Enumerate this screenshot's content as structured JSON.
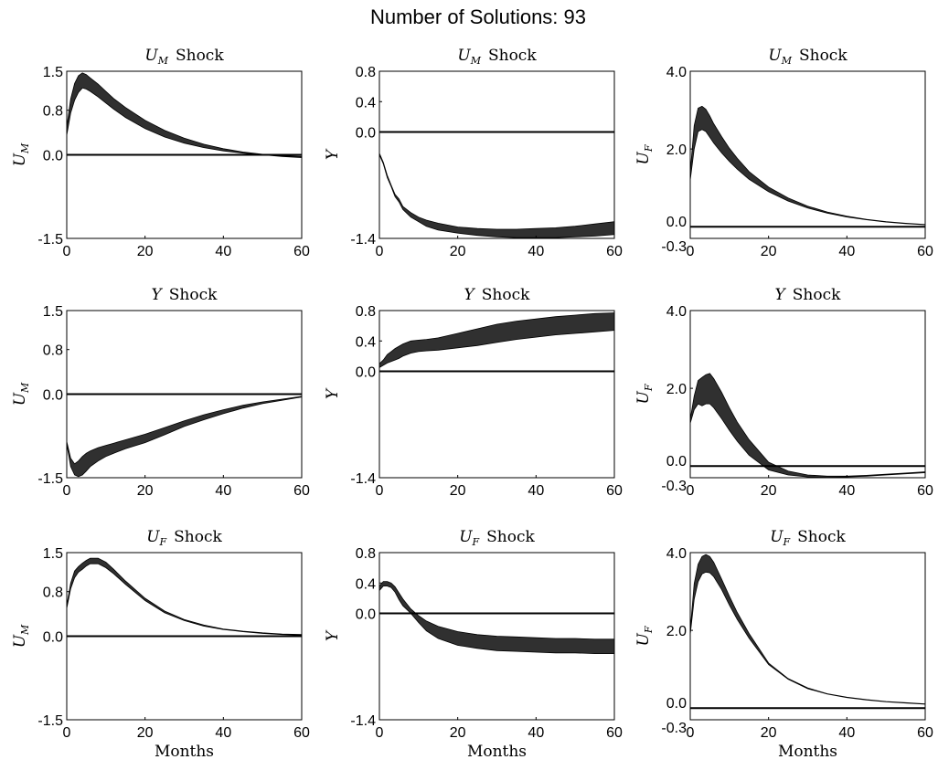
{
  "figure": {
    "title": "Number of Solutions: 93"
  },
  "chart_data": [
    {
      "type": "area",
      "title_var": "U",
      "title_sub": "M",
      "title_suffix": "Shock",
      "ylabel_var": "U",
      "ylabel_sub": "M",
      "xlabel": "",
      "xlim": [
        0,
        60
      ],
      "ylim": [
        -1.5,
        1.5
      ],
      "xticks": [
        0,
        20,
        40,
        60
      ],
      "yticks": [
        -1.5,
        0.0,
        0.8,
        1.5
      ],
      "xtick_labels": [
        "0",
        "20",
        "40",
        "60"
      ],
      "ytick_labels": [
        "-1.5",
        "0.0",
        "0.8",
        "1.5"
      ],
      "zero_line": 0,
      "x": [
        0,
        1,
        2,
        3,
        4,
        5,
        6,
        8,
        10,
        12,
        15,
        20,
        25,
        30,
        35,
        40,
        45,
        50,
        55,
        60
      ],
      "lower": [
        0.35,
        0.75,
        0.98,
        1.12,
        1.2,
        1.18,
        1.14,
        1.04,
        0.93,
        0.82,
        0.67,
        0.47,
        0.32,
        0.21,
        0.13,
        0.07,
        0.03,
        0.0,
        -0.03,
        -0.05
      ],
      "upper": [
        0.5,
        1.0,
        1.28,
        1.42,
        1.47,
        1.44,
        1.38,
        1.27,
        1.14,
        1.01,
        0.85,
        0.62,
        0.44,
        0.3,
        0.19,
        0.11,
        0.05,
        0.01,
        -0.02,
        -0.03
      ]
    },
    {
      "type": "area",
      "title_var": "U",
      "title_sub": "M",
      "title_suffix": "Shock",
      "ylabel_var": "Y",
      "ylabel_sub": "",
      "xlabel": "",
      "xlim": [
        0,
        60
      ],
      "ylim": [
        -1.4,
        0.8
      ],
      "xticks": [
        0,
        20,
        40,
        60
      ],
      "yticks": [
        -1.4,
        0.0,
        0.4,
        0.8
      ],
      "xtick_labels": [
        "0",
        "20",
        "40",
        "60"
      ],
      "ytick_labels": [
        "-1.4",
        "0.0",
        "0.4",
        "0.8"
      ],
      "zero_line": 0,
      "x": [
        0,
        1,
        2,
        3,
        4,
        5,
        6,
        8,
        10,
        12,
        15,
        20,
        25,
        30,
        35,
        40,
        45,
        50,
        55,
        60
      ],
      "lower": [
        -0.3,
        -0.42,
        -0.6,
        -0.72,
        -0.85,
        -0.92,
        -1.02,
        -1.12,
        -1.18,
        -1.24,
        -1.29,
        -1.33,
        -1.36,
        -1.38,
        -1.39,
        -1.39,
        -1.39,
        -1.38,
        -1.37,
        -1.35
      ],
      "upper": [
        -0.28,
        -0.4,
        -0.57,
        -0.7,
        -0.82,
        -0.88,
        -0.98,
        -1.06,
        -1.12,
        -1.16,
        -1.2,
        -1.25,
        -1.27,
        -1.28,
        -1.28,
        -1.27,
        -1.26,
        -1.24,
        -1.21,
        -1.18
      ]
    },
    {
      "type": "area",
      "title_var": "U",
      "title_sub": "M",
      "title_suffix": "Shock",
      "ylabel_var": "U",
      "ylabel_sub": "F",
      "xlabel": "",
      "xlim": [
        0,
        60
      ],
      "ylim": [
        -0.3,
        4.0
      ],
      "xticks": [
        0,
        20,
        40,
        60
      ],
      "yticks": [
        -0.3,
        0.0,
        2.0,
        4.0
      ],
      "xtick_labels": [
        "0",
        "20",
        "40",
        "60"
      ],
      "ytick_labels": [
        "-0.3",
        "0.0",
        "2.0",
        "4.0"
      ],
      "zero_line": 0,
      "x": [
        0,
        1,
        2,
        3,
        4,
        5,
        6,
        8,
        10,
        12,
        15,
        20,
        25,
        30,
        35,
        40,
        45,
        50,
        55,
        60
      ],
      "lower": [
        1.2,
        2.0,
        2.45,
        2.5,
        2.45,
        2.3,
        2.15,
        1.9,
        1.68,
        1.48,
        1.22,
        0.9,
        0.66,
        0.48,
        0.35,
        0.25,
        0.18,
        0.12,
        0.08,
        0.05
      ],
      "upper": [
        1.4,
        2.6,
        3.05,
        3.1,
        3.02,
        2.85,
        2.65,
        2.32,
        2.02,
        1.76,
        1.42,
        1.02,
        0.74,
        0.53,
        0.38,
        0.27,
        0.19,
        0.13,
        0.09,
        0.06
      ]
    },
    {
      "type": "area",
      "title_var": "Y",
      "title_sub": "",
      "title_suffix": "Shock",
      "ylabel_var": "U",
      "ylabel_sub": "M",
      "xlabel": "",
      "xlim": [
        0,
        60
      ],
      "ylim": [
        -1.5,
        1.5
      ],
      "xticks": [
        0,
        20,
        40,
        60
      ],
      "yticks": [
        -1.5,
        0.0,
        0.8,
        1.5
      ],
      "xtick_labels": [
        "0",
        "20",
        "40",
        "60"
      ],
      "ytick_labels": [
        "-1.5",
        "0.0",
        "0.8",
        "1.5"
      ],
      "zero_line": 0,
      "x": [
        0,
        1,
        2,
        3,
        4,
        5,
        6,
        8,
        10,
        12,
        15,
        20,
        25,
        30,
        35,
        40,
        45,
        50,
        55,
        60
      ],
      "lower": [
        -0.9,
        -1.3,
        -1.45,
        -1.48,
        -1.45,
        -1.38,
        -1.3,
        -1.2,
        -1.12,
        -1.06,
        -0.98,
        -0.87,
        -0.73,
        -0.58,
        -0.46,
        -0.35,
        -0.25,
        -0.17,
        -0.11,
        -0.05
      ],
      "upper": [
        -0.85,
        -1.15,
        -1.25,
        -1.2,
        -1.12,
        -1.06,
        -1.02,
        -0.96,
        -0.92,
        -0.88,
        -0.82,
        -0.72,
        -0.6,
        -0.48,
        -0.37,
        -0.28,
        -0.2,
        -0.14,
        -0.09,
        -0.04
      ]
    },
    {
      "type": "area",
      "title_var": "Y",
      "title_sub": "",
      "title_suffix": "Shock",
      "ylabel_var": "Y",
      "ylabel_sub": "",
      "xlabel": "",
      "xlim": [
        0,
        60
      ],
      "ylim": [
        -1.4,
        0.8
      ],
      "xticks": [
        0,
        20,
        40,
        60
      ],
      "yticks": [
        -1.4,
        0.0,
        0.4,
        0.8
      ],
      "xtick_labels": [
        "0",
        "20",
        "40",
        "60"
      ],
      "ytick_labels": [
        "-1.4",
        "0.0",
        "0.4",
        "0.8"
      ],
      "zero_line": 0,
      "x": [
        0,
        1,
        2,
        3,
        4,
        5,
        6,
        8,
        10,
        12,
        15,
        20,
        25,
        30,
        35,
        40,
        45,
        50,
        55,
        60
      ],
      "lower": [
        0.05,
        0.08,
        0.11,
        0.13,
        0.15,
        0.17,
        0.2,
        0.24,
        0.26,
        0.27,
        0.28,
        0.31,
        0.34,
        0.38,
        0.42,
        0.45,
        0.48,
        0.5,
        0.52,
        0.54
      ],
      "upper": [
        0.1,
        0.15,
        0.22,
        0.26,
        0.3,
        0.33,
        0.36,
        0.4,
        0.41,
        0.42,
        0.44,
        0.5,
        0.56,
        0.62,
        0.66,
        0.69,
        0.72,
        0.74,
        0.76,
        0.77
      ]
    },
    {
      "type": "area",
      "title_var": "Y",
      "title_sub": "",
      "title_suffix": "Shock",
      "ylabel_var": "U",
      "ylabel_sub": "F",
      "xlabel": "",
      "xlim": [
        0,
        60
      ],
      "ylim": [
        -0.3,
        4.0
      ],
      "xticks": [
        0,
        20,
        40,
        60
      ],
      "yticks": [
        -0.3,
        0.0,
        2.0,
        4.0
      ],
      "xtick_labels": [
        "0",
        "20",
        "40",
        "60"
      ],
      "ytick_labels": [
        "-0.3",
        "0.0",
        "2.0",
        "4.0"
      ],
      "zero_line": 0,
      "x": [
        0,
        1,
        2,
        3,
        4,
        5,
        6,
        8,
        10,
        12,
        15,
        20,
        25,
        30,
        35,
        40,
        45,
        50,
        55,
        60
      ],
      "lower": [
        1.1,
        1.45,
        1.6,
        1.55,
        1.6,
        1.6,
        1.5,
        1.22,
        0.92,
        0.64,
        0.28,
        -0.1,
        -0.23,
        -0.28,
        -0.29,
        -0.28,
        -0.26,
        -0.23,
        -0.2,
        -0.17
      ],
      "upper": [
        1.2,
        1.8,
        2.2,
        2.28,
        2.35,
        2.38,
        2.25,
        1.9,
        1.5,
        1.13,
        0.68,
        0.1,
        -0.13,
        -0.23,
        -0.26,
        -0.26,
        -0.24,
        -0.21,
        -0.18,
        -0.15
      ]
    },
    {
      "type": "area",
      "title_var": "U",
      "title_sub": "F",
      "title_suffix": "Shock",
      "ylabel_var": "U",
      "ylabel_sub": "M",
      "xlabel": "Months",
      "xlim": [
        0,
        60
      ],
      "ylim": [
        -1.5,
        1.5
      ],
      "xticks": [
        0,
        20,
        40,
        60
      ],
      "yticks": [
        -1.5,
        0.0,
        0.8,
        1.5
      ],
      "xtick_labels": [
        "0",
        "20",
        "40",
        "60"
      ],
      "ytick_labels": [
        "-1.5",
        "0.0",
        "0.8",
        "1.5"
      ],
      "zero_line": 0,
      "x": [
        0,
        1,
        2,
        3,
        4,
        5,
        6,
        8,
        10,
        12,
        15,
        20,
        25,
        30,
        35,
        40,
        45,
        50,
        55,
        60
      ],
      "lower": [
        0.5,
        0.85,
        1.05,
        1.15,
        1.2,
        1.26,
        1.3,
        1.3,
        1.23,
        1.12,
        0.93,
        0.64,
        0.42,
        0.28,
        0.18,
        0.12,
        0.08,
        0.05,
        0.03,
        0.02
      ],
      "upper": [
        0.55,
        0.95,
        1.17,
        1.25,
        1.31,
        1.36,
        1.4,
        1.4,
        1.33,
        1.2,
        0.99,
        0.68,
        0.45,
        0.3,
        0.2,
        0.13,
        0.09,
        0.06,
        0.04,
        0.03
      ]
    },
    {
      "type": "area",
      "title_var": "U",
      "title_sub": "F",
      "title_suffix": "Shock",
      "ylabel_var": "Y",
      "ylabel_sub": "",
      "xlabel": "Months",
      "xlim": [
        0,
        60
      ],
      "ylim": [
        -1.4,
        0.8
      ],
      "xticks": [
        0,
        20,
        40,
        60
      ],
      "yticks": [
        -1.4,
        0.0,
        0.4,
        0.8
      ],
      "xtick_labels": [
        "0",
        "20",
        "40",
        "60"
      ],
      "ytick_labels": [
        "-1.4",
        "0.0",
        "0.4",
        "0.8"
      ],
      "zero_line": 0,
      "x": [
        0,
        1,
        2,
        3,
        4,
        5,
        6,
        8,
        10,
        12,
        15,
        20,
        25,
        30,
        35,
        40,
        45,
        50,
        55,
        60
      ],
      "lower": [
        0.3,
        0.36,
        0.36,
        0.34,
        0.28,
        0.18,
        0.1,
        0.0,
        -0.12,
        -0.23,
        -0.33,
        -0.42,
        -0.46,
        -0.49,
        -0.5,
        -0.51,
        -0.52,
        -0.52,
        -0.53,
        -0.53
      ],
      "upper": [
        0.36,
        0.42,
        0.42,
        0.4,
        0.35,
        0.27,
        0.19,
        0.06,
        -0.03,
        -0.1,
        -0.17,
        -0.24,
        -0.28,
        -0.3,
        -0.31,
        -0.32,
        -0.33,
        -0.33,
        -0.34,
        -0.34
      ]
    },
    {
      "type": "area",
      "title_var": "U",
      "title_sub": "F",
      "title_suffix": "Shock",
      "ylabel_var": "U",
      "ylabel_sub": "F",
      "xlabel": "Months",
      "xlim": [
        0,
        60
      ],
      "ylim": [
        -0.3,
        4.0
      ],
      "xticks": [
        0,
        20,
        40,
        60
      ],
      "yticks": [
        -0.3,
        0.0,
        2.0,
        4.0
      ],
      "xtick_labels": [
        "0",
        "20",
        "40",
        "60"
      ],
      "ytick_labels": [
        "-0.3",
        "0.0",
        "2.0",
        "4.0"
      ],
      "zero_line": 0,
      "x": [
        0,
        1,
        2,
        3,
        4,
        5,
        6,
        8,
        10,
        12,
        15,
        20,
        25,
        30,
        35,
        40,
        45,
        50,
        55,
        60
      ],
      "lower": [
        1.9,
        2.8,
        3.25,
        3.45,
        3.5,
        3.48,
        3.38,
        3.05,
        2.65,
        2.28,
        1.8,
        1.12,
        0.74,
        0.5,
        0.36,
        0.27,
        0.21,
        0.16,
        0.13,
        0.1
      ],
      "upper": [
        2.0,
        3.2,
        3.7,
        3.9,
        3.95,
        3.9,
        3.75,
        3.32,
        2.88,
        2.46,
        1.92,
        1.16,
        0.76,
        0.52,
        0.37,
        0.28,
        0.22,
        0.17,
        0.14,
        0.11
      ]
    }
  ]
}
